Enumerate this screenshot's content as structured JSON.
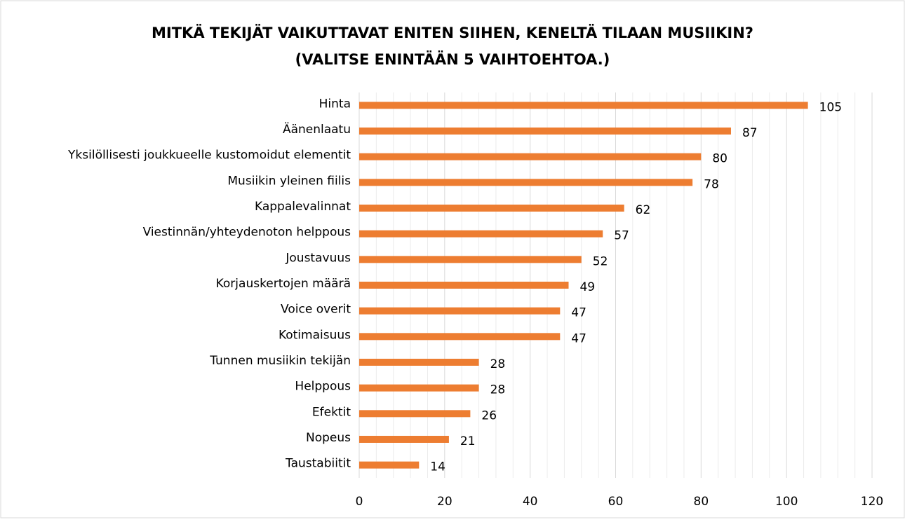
{
  "chart_data": {
    "type": "barh",
    "title": [
      "MITKÄ TEKIJÄT VAIKUTTAVAT ENITEN SIIHEN, KENELTÄ TILAAN MUSIIKIN?",
      "(VALITSE ENINTÄÄN 5 VAIHTOEHTOA.)"
    ],
    "categories": [
      "Hinta",
      "Äänenlaatu",
      "Yksilöllisesti joukkueelle kustomoidut elementit",
      "Musiikin yleinen fiilis",
      "Kappalevalinnat",
      "Viestinnän/yhteydenoton helppous",
      "Joustavuus",
      "Korjauskertojen määrä",
      "Voice overit",
      "Kotimaisuus",
      "Tunnen musiikin tekijän",
      "Helppous",
      "Efektit",
      "Nopeus",
      "Taustabiitit"
    ],
    "values": [
      105,
      87,
      80,
      78,
      62,
      57,
      52,
      49,
      47,
      47,
      28,
      28,
      26,
      21,
      14
    ],
    "color": "#ed7d31",
    "xlim": [
      0,
      120
    ],
    "xticks": [
      0,
      20,
      40,
      60,
      80,
      100,
      120
    ],
    "xminorticks": [
      4,
      8,
      12,
      16,
      24,
      28,
      32,
      36,
      44,
      48,
      52,
      56,
      64,
      68,
      72,
      76,
      84,
      88,
      92,
      96,
      104,
      108,
      112,
      116
    ],
    "grid": true
  }
}
